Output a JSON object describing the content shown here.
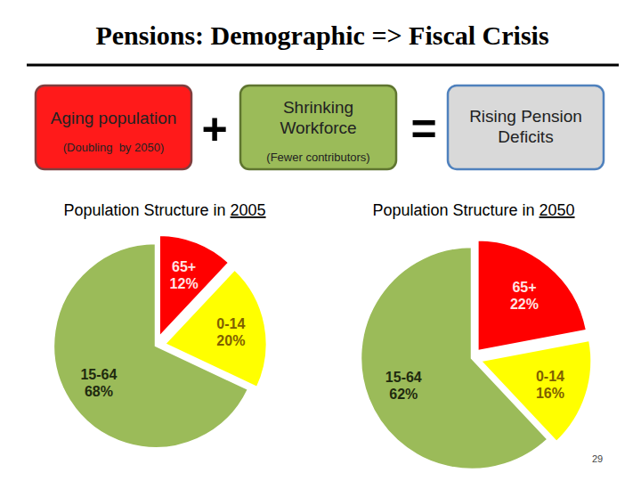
{
  "title": "Pensions: Demographic => Fiscal Crisis",
  "equation": {
    "terms": [
      {
        "label": "Aging population",
        "note": "(Doubling  by 2050)"
      },
      {
        "label": "Shrinking Workforce",
        "note": "(Fewer contributors)"
      },
      {
        "label": "Rising Pension Deficits"
      }
    ],
    "operators": [
      "+",
      "="
    ]
  },
  "page_number": 29,
  "chart_data": [
    {
      "type": "pie",
      "title": "Population Structure in 2005",
      "categories": [
        "65+",
        "0-14",
        "15-64"
      ],
      "values": [
        12,
        20,
        68
      ],
      "value_labels": [
        "12%",
        "20%",
        "68%"
      ],
      "colors": [
        "#ff0000",
        "#ffff00",
        "#9bbb59"
      ],
      "data_labels": true
    },
    {
      "type": "pie",
      "title": "Population Structure in 2050",
      "categories": [
        "65+",
        "0-14",
        "15-64"
      ],
      "values": [
        22,
        16,
        62
      ],
      "value_labels": [
        "22%",
        "16%",
        "62%"
      ],
      "colors": [
        "#ff0000",
        "#ffff00",
        "#9bbb59"
      ],
      "data_labels": true
    }
  ]
}
